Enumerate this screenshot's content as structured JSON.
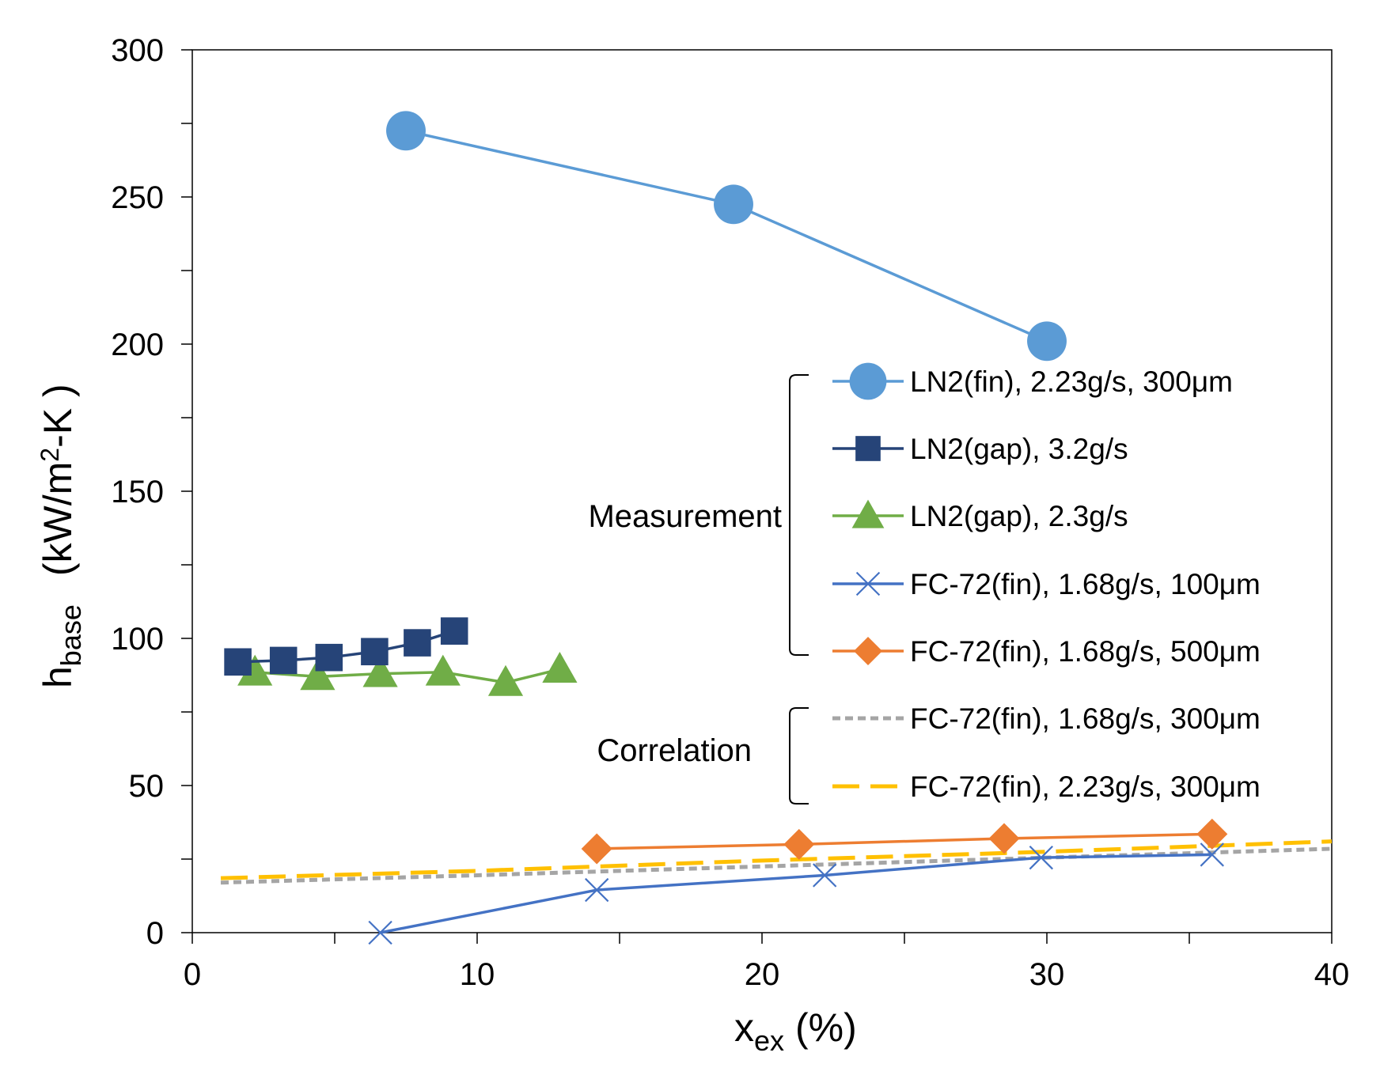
{
  "chart_data": {
    "type": "line",
    "title": "",
    "xlabel": {
      "main": "x",
      "sub": "ex",
      "unit": "(%)"
    },
    "ylabel": {
      "main": "h",
      "sub": "base",
      "unit_pre": "(kW/m",
      "unit_sup": "2",
      "unit_post": "-K )"
    },
    "xlim": [
      0,
      40
    ],
    "ylim": [
      0,
      300
    ],
    "xticks": [
      0,
      10,
      20,
      30,
      40
    ],
    "yticks": [
      0,
      50,
      100,
      150,
      200,
      250,
      300
    ],
    "grid": false,
    "legend_position": "right",
    "legend_groups": [
      {
        "label": "Measurement",
        "series": [
          0,
          1,
          2,
          3,
          4
        ]
      },
      {
        "label": "Correlation",
        "series": [
          5,
          6
        ]
      }
    ],
    "series": [
      {
        "name": "LN2(fin), 2.23g/s, 300μm",
        "color": "#5B9BD5",
        "marker": "circle",
        "line": "solid",
        "points": [
          [
            7.5,
            272.5
          ],
          [
            19,
            247.5
          ],
          [
            30,
            201
          ]
        ]
      },
      {
        "name": "LN2(gap), 3.2g/s",
        "color": "#264478",
        "marker": "square",
        "line": "solid",
        "points": [
          [
            1.6,
            92
          ],
          [
            3.2,
            92.5
          ],
          [
            4.8,
            93.5
          ],
          [
            6.4,
            95.5
          ],
          [
            7.9,
            98.5
          ],
          [
            9.2,
            102.5
          ]
        ]
      },
      {
        "name": "LN2(gap), 2.3g/s",
        "color": "#70AD47",
        "marker": "triangle",
        "line": "solid",
        "points": [
          [
            2.2,
            88.5
          ],
          [
            4.4,
            87
          ],
          [
            6.6,
            88
          ],
          [
            8.8,
            88.5
          ],
          [
            11,
            85
          ],
          [
            12.9,
            89.5
          ]
        ]
      },
      {
        "name": "FC-72(fin), 1.68g/s, 100μm",
        "color": "#4472C4",
        "marker": "x",
        "line": "solid",
        "points": [
          [
            6.6,
            0
          ],
          [
            14.2,
            14.5
          ],
          [
            22.2,
            19.5
          ],
          [
            29.8,
            25.5
          ],
          [
            35.8,
            26.5
          ]
        ]
      },
      {
        "name": "FC-72(fin), 1.68g/s, 500μm",
        "color": "#ED7D31",
        "marker": "diamond",
        "line": "solid",
        "points": [
          [
            14.2,
            28.5
          ],
          [
            21.3,
            30
          ],
          [
            28.5,
            32
          ],
          [
            35.8,
            33.5
          ]
        ]
      },
      {
        "name": "FC-72(fin), 1.68g/s, 300μm",
        "color": "#A5A5A5",
        "marker": "none",
        "line": "short-dash",
        "points": [
          [
            1,
            17
          ],
          [
            10,
            19.5
          ],
          [
            20,
            22.5
          ],
          [
            30,
            25.5
          ],
          [
            40,
            28.5
          ]
        ]
      },
      {
        "name": "FC-72(fin), 2.23g/s, 300μm",
        "color": "#FFC000",
        "marker": "none",
        "line": "long-dash",
        "points": [
          [
            1,
            18.5
          ],
          [
            10,
            21
          ],
          [
            20,
            24.5
          ],
          [
            30,
            27.5
          ],
          [
            40,
            31
          ]
        ]
      }
    ]
  }
}
